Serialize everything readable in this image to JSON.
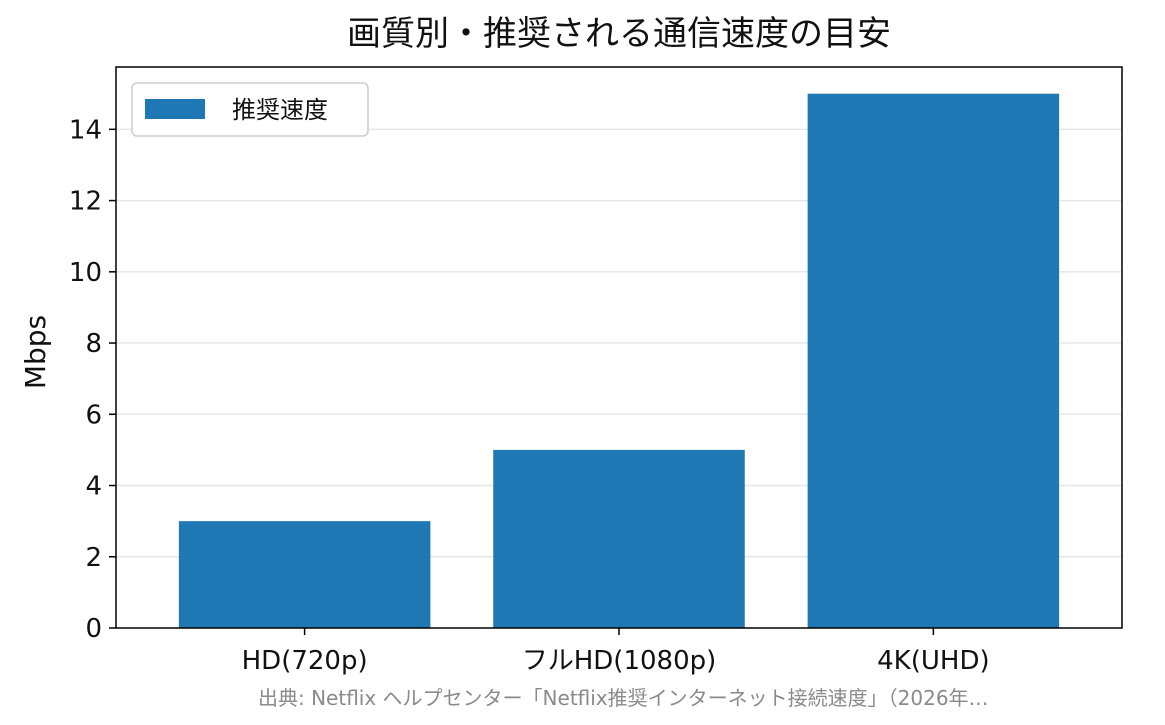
{
  "chart_data": {
    "type": "bar",
    "title": "画質別・推奨される通信速度の目安",
    "xlabel": "",
    "ylabel": "Mbps",
    "categories": [
      "HD(720p)",
      "フルHD(1080p)",
      "4K(UHD)"
    ],
    "series": [
      {
        "name": "推奨速度",
        "values": [
          3,
          5,
          15
        ],
        "color": "#1f77b4"
      }
    ],
    "ylim": [
      0,
      15.75
    ],
    "yticks": [
      0,
      2,
      4,
      6,
      8,
      10,
      12,
      14
    ],
    "grid": "y",
    "legend": "top-left",
    "source": "出典: Netflix ヘルプセンター「Netflix推奨インターネット接続速度」（2026年…"
  }
}
